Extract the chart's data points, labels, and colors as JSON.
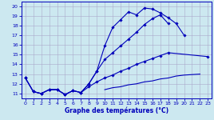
{
  "xlabel": "Graphe des températures (°C)",
  "xlim": [
    -0.5,
    23.5
  ],
  "ylim": [
    10.5,
    20.5
  ],
  "yticks": [
    11,
    12,
    13,
    14,
    15,
    16,
    17,
    18,
    19,
    20
  ],
  "xticks": [
    0,
    1,
    2,
    3,
    4,
    5,
    6,
    7,
    8,
    9,
    10,
    11,
    12,
    13,
    14,
    15,
    16,
    17,
    18,
    19,
    20,
    21,
    22,
    23
  ],
  "bg_color": "#cce8f0",
  "grid_color": "#aaaacc",
  "line_color": "#0000bb",
  "line1_y": [
    12.6,
    11.2,
    11.0,
    11.4,
    11.4,
    10.9,
    11.3,
    11.1,
    12.0,
    13.3,
    15.9,
    17.8,
    18.6,
    19.4,
    19.1,
    19.8,
    19.7,
    19.3,
    18.8,
    18.2,
    17.0,
    null,
    null,
    null
  ],
  "line2_y": [
    12.6,
    11.2,
    11.0,
    11.4,
    11.4,
    10.9,
    11.3,
    11.1,
    12.0,
    13.3,
    14.5,
    15.2,
    15.9,
    16.6,
    17.3,
    18.1,
    18.7,
    19.1,
    18.2,
    null,
    null,
    null,
    null,
    null
  ],
  "line3_y": [
    12.6,
    11.2,
    11.0,
    11.4,
    11.4,
    10.9,
    11.3,
    11.1,
    11.7,
    12.2,
    12.6,
    12.9,
    13.3,
    13.6,
    14.0,
    14.3,
    14.6,
    14.9,
    15.2,
    null,
    null,
    null,
    null,
    14.8
  ],
  "line4_y": [
    null,
    null,
    null,
    null,
    null,
    null,
    null,
    null,
    null,
    null,
    11.4,
    11.6,
    11.7,
    11.9,
    12.0,
    12.2,
    12.3,
    12.5,
    12.6,
    12.8,
    12.9,
    null,
    13.0,
    null
  ]
}
